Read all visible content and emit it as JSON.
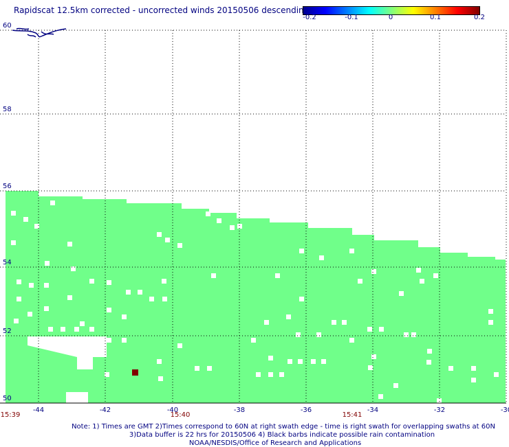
{
  "title": "Rapidscat 12.5km corrected - uncorrected winds 20150506 descending",
  "colorbar": {
    "ticks": [
      "-0.2",
      "-0.1",
      "0",
      "0.1",
      "0.2"
    ],
    "colors": [
      "#00008f",
      "#0000ff",
      "#0080ff",
      "#00ffff",
      "#80ff80",
      "#ffff00",
      "#ff8000",
      "#ff0000",
      "#800000"
    ]
  },
  "map": {
    "lon_ticks": [
      "-44",
      "-42",
      "-40",
      "-38",
      "-36",
      "-34",
      "-32",
      "-30"
    ],
    "lat_ticks": [
      "50",
      "52",
      "54",
      "56",
      "58",
      "60"
    ],
    "swath_color": "#70ff8a",
    "anomaly_color": "#800000"
  },
  "time_labels": [
    "15:39",
    "15:40",
    "15:41"
  ],
  "notes": [
    "Note: 1) Times are GMT 2)Times correspond to 60N at right swath edge - time is right swath for overlapping swaths at 60N",
    "3)Data buffer is 22 hrs for 20150506 4) Black barbs indicate possible rain contamination",
    "NOAA/NESDIS/Office of Research and Applications"
  ]
}
